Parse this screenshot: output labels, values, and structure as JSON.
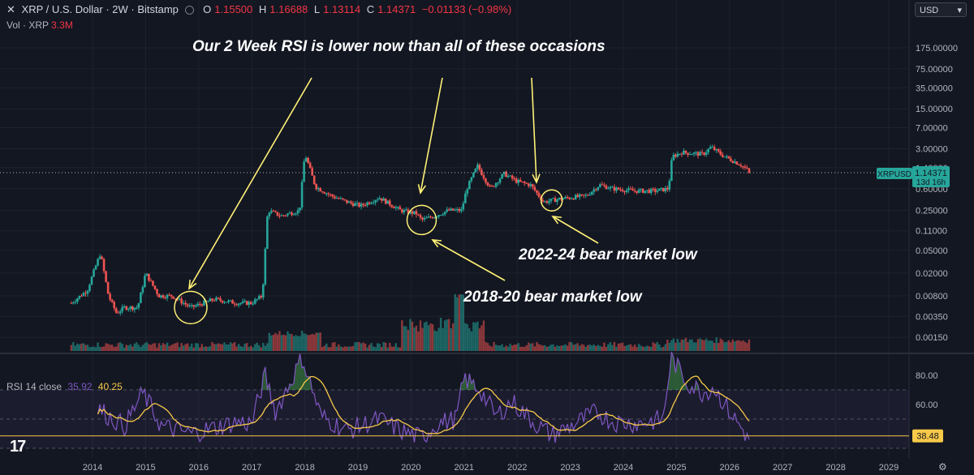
{
  "header": {
    "symbol": "XRP / U.S. Dollar · 2W · Bitstamp",
    "o_label": "O",
    "o": "1.15500",
    "h_label": "H",
    "h": "1.16688",
    "l_label": "L",
    "l": "1.13114",
    "c_label": "C",
    "c": "1.14371",
    "chg": "−0.01133 (−0.98%)"
  },
  "volume": {
    "label": "Vol · XRP",
    "value": "3.3M"
  },
  "currency": "USD",
  "rsi": {
    "label": "RSI 14 close",
    "value": "35.92",
    "ma": "40.25",
    "current_tag": "38.48"
  },
  "price_tag": {
    "symbol": "XRPUSD",
    "price": "1.14371",
    "countdown": "13d 16h"
  },
  "annotations": {
    "headline": "Our 2 Week RSI is lower now than all of these occasions",
    "low_2018": "2018-20 bear market low",
    "low_2022": "2022-24 bear market low"
  },
  "colors": {
    "bg": "#131722",
    "up": "#26a69a",
    "down": "#ef5350",
    "rsi": "#7e57c2",
    "rsi_ma": "#f7c948",
    "annotation": "#fff176"
  },
  "chart_data": [
    {
      "type": "candlestick",
      "yscale": "log",
      "y_ticks": [
        "175.00000",
        "75.00000",
        "35.00000",
        "15.00000",
        "7.00000",
        "3.00000",
        "1.40000",
        "0.60000",
        "0.25000",
        "0.11000",
        "0.05000",
        "0.02000",
        "0.00800",
        "0.00350",
        "0.00150"
      ],
      "x_ticks": [
        "2014",
        "2015",
        "2016",
        "2017",
        "2018",
        "2019",
        "2020",
        "2021",
        "2022",
        "2023",
        "2024",
        "2025",
        "2026",
        "2027",
        "2028",
        "2029"
      ],
      "anchors": [
        [
          "2013.6",
          0.006
        ],
        [
          "2013.9",
          0.01
        ],
        [
          "2014.05",
          0.025
        ],
        [
          "2014.15",
          0.045
        ],
        [
          "2014.3",
          0.008
        ],
        [
          "2014.45",
          0.004
        ],
        [
          "2014.6",
          0.005
        ],
        [
          "2014.85",
          0.005
        ],
        [
          "2015.0",
          0.02
        ],
        [
          "2015.25",
          0.008
        ],
        [
          "2015.5",
          0.008
        ],
        [
          "2015.85",
          0.005
        ],
        [
          "2016.3",
          0.007
        ],
        [
          "2016.7",
          0.006
        ],
        [
          "2017.0",
          0.006
        ],
        [
          "2017.2",
          0.008
        ],
        [
          "2017.3",
          0.25
        ],
        [
          "2017.55",
          0.2
        ],
        [
          "2017.9",
          0.25
        ],
        [
          "2018.0",
          2.5
        ],
        [
          "2018.2",
          0.65
        ],
        [
          "2018.5",
          0.45
        ],
        [
          "2018.8",
          0.35
        ],
        [
          "2019.05",
          0.3
        ],
        [
          "2019.4",
          0.42
        ],
        [
          "2019.8",
          0.25
        ],
        [
          "2020.1",
          0.22
        ],
        [
          "2020.2",
          0.17
        ],
        [
          "2020.45",
          0.2
        ],
        [
          "2020.7",
          0.25
        ],
        [
          "2020.95",
          0.25
        ],
        [
          "2021.05",
          0.6
        ],
        [
          "2021.25",
          1.5
        ],
        [
          "2021.5",
          0.6
        ],
        [
          "2021.75",
          1.1
        ],
        [
          "2022.0",
          0.8
        ],
        [
          "2022.25",
          0.7
        ],
        [
          "2022.5",
          0.35
        ],
        [
          "2022.8",
          0.4
        ],
        [
          "2023.3",
          0.45
        ],
        [
          "2023.55",
          0.7
        ],
        [
          "2023.8",
          0.6
        ],
        [
          "2024.2",
          0.55
        ],
        [
          "2024.6",
          0.55
        ],
        [
          "2024.85",
          0.6
        ],
        [
          "2024.92",
          2.2
        ],
        [
          "2025.1",
          2.6
        ],
        [
          "2025.5",
          2.4
        ],
        [
          "2025.65",
          3.2
        ],
        [
          "2025.9",
          2.2
        ],
        [
          "2026.2",
          1.6
        ],
        [
          "2026.4",
          1.14371
        ]
      ],
      "circles": [
        "2015.85",
        "2020.2",
        "2022.65"
      ]
    },
    {
      "type": "line",
      "name": "RSI 14 close",
      "y_ticks": [
        "80.00",
        "60.00"
      ],
      "bands": [
        30,
        70
      ],
      "anchors": [
        [
          "2014.1",
          57
        ],
        [
          "2014.6",
          45
        ],
        [
          "2014.95",
          68
        ],
        [
          "2015.3",
          45
        ],
        [
          "2015.85",
          40
        ],
        [
          "2016.3",
          44
        ],
        [
          "2016.7",
          48
        ],
        [
          "2017.0",
          47
        ],
        [
          "2017.25",
          80
        ],
        [
          "2017.45",
          55
        ],
        [
          "2017.95",
          92
        ],
        [
          "2018.3",
          52
        ],
        [
          "2018.8",
          42
        ],
        [
          "2019.4",
          50
        ],
        [
          "2019.8",
          42
        ],
        [
          "2020.2",
          37
        ],
        [
          "2020.5",
          47
        ],
        [
          "2020.85",
          50
        ],
        [
          "2021.0",
          78
        ],
        [
          "2021.3",
          70
        ],
        [
          "2021.6",
          52
        ],
        [
          "2021.9",
          62
        ],
        [
          "2022.3",
          48
        ],
        [
          "2022.65",
          39
        ],
        [
          "2023.0",
          45
        ],
        [
          "2023.5",
          55
        ],
        [
          "2023.8",
          48
        ],
        [
          "2024.3",
          47
        ],
        [
          "2024.75",
          50
        ],
        [
          "2024.9",
          92
        ],
        [
          "2025.2",
          75
        ],
        [
          "2025.5",
          68
        ],
        [
          "2025.7",
          72
        ],
        [
          "2026.0",
          55
        ],
        [
          "2026.3",
          40
        ],
        [
          "2026.4",
          35.92
        ]
      ]
    }
  ]
}
